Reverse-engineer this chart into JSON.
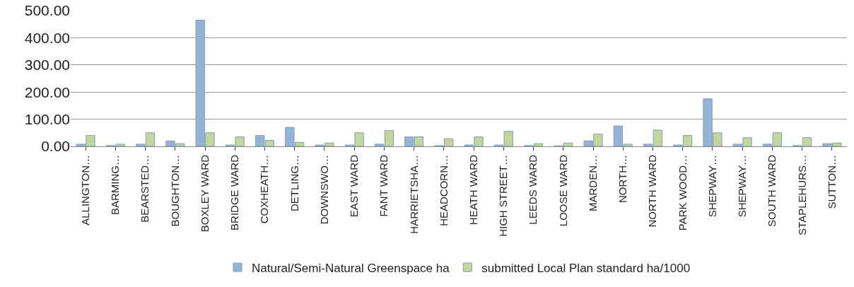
{
  "chart_data": {
    "type": "bar",
    "categories": [
      "ALLINGTON…",
      "BARMING…",
      "BEARSTED…",
      "BOUGHTON…",
      "BOXLEY WARD",
      "BRIDGE WARD",
      "COXHEATH…",
      "DETLING…",
      "DOWNSWO…",
      "EAST WARD",
      "FANT WARD",
      "HARRIETSHA…",
      "HEADCORN…",
      "HEATH WARD",
      "HIGH STREET…",
      "LEEDS WARD",
      "LOOSE WARD",
      "MARDEN…",
      "NORTH…",
      "NORTH WARD",
      "PARK WOOD…",
      "SHEPWAY…",
      "SHEPWAY…",
      "SOUTH WARD",
      "STAPLEHURS…",
      "SUTTON…"
    ],
    "series": [
      {
        "name": "Natural/Semi-Natural Greenspace ha",
        "color": "#95b3d7",
        "values": [
          8,
          3,
          8,
          20,
          465,
          5,
          40,
          70,
          5,
          5,
          8,
          35,
          3,
          5,
          5,
          3,
          2,
          20,
          75,
          8,
          5,
          175,
          8,
          8,
          3,
          10
        ]
      },
      {
        "name": "submitted Local Plan standard ha/1000",
        "color": "#c3d69b",
        "values": [
          40,
          8,
          50,
          10,
          50,
          35,
          22,
          15,
          12,
          50,
          58,
          35,
          28,
          35,
          55,
          10,
          12,
          45,
          8,
          60,
          40,
          50,
          32,
          50,
          32,
          12
        ]
      }
    ],
    "ylim": [
      0,
      500
    ],
    "yticks": [
      {
        "value": 0,
        "label": "0.00"
      },
      {
        "value": 100,
        "label": "100.00"
      },
      {
        "value": 200,
        "label": "200.00"
      },
      {
        "value": 300,
        "label": "300.00"
      },
      {
        "value": 400,
        "label": "400.00"
      },
      {
        "value": 500,
        "label": "500.00"
      }
    ],
    "grid": "y",
    "legend": "bottom"
  }
}
